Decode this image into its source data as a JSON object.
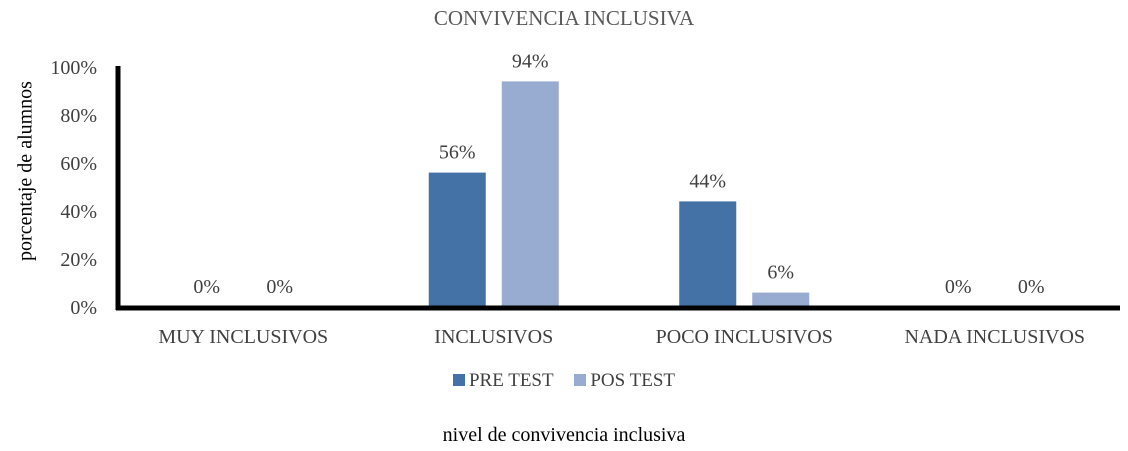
{
  "chart_data": {
    "type": "bar",
    "title": "CONVIVENCIA INCLUSIVA",
    "xlabel": "nivel de convivencia inclusiva",
    "ylabel": "porcentaje de alumnos",
    "categories": [
      "MUY INCLUSIVOS",
      "INCLUSIVOS",
      "POCO INCLUSIVOS",
      "NADA INCLUSIVOS"
    ],
    "series": [
      {
        "name": "PRE TEST",
        "values": [
          0,
          56,
          44,
          0
        ],
        "labels": [
          "0%",
          "56%",
          "44%",
          "0%"
        ],
        "color": "#4472a6"
      },
      {
        "name": "POS TEST",
        "values": [
          0,
          94,
          6,
          0
        ],
        "labels": [
          "0%",
          "94%",
          "6%",
          "0%"
        ],
        "color": "#98acd2"
      }
    ],
    "yticks": [
      "0%",
      "20%",
      "40%",
      "60%",
      "80%",
      "100%"
    ],
    "ytick_values": [
      0,
      20,
      40,
      60,
      80,
      100
    ],
    "ylim": [
      0,
      100
    ],
    "grid": false,
    "legend_position": "bottom"
  }
}
